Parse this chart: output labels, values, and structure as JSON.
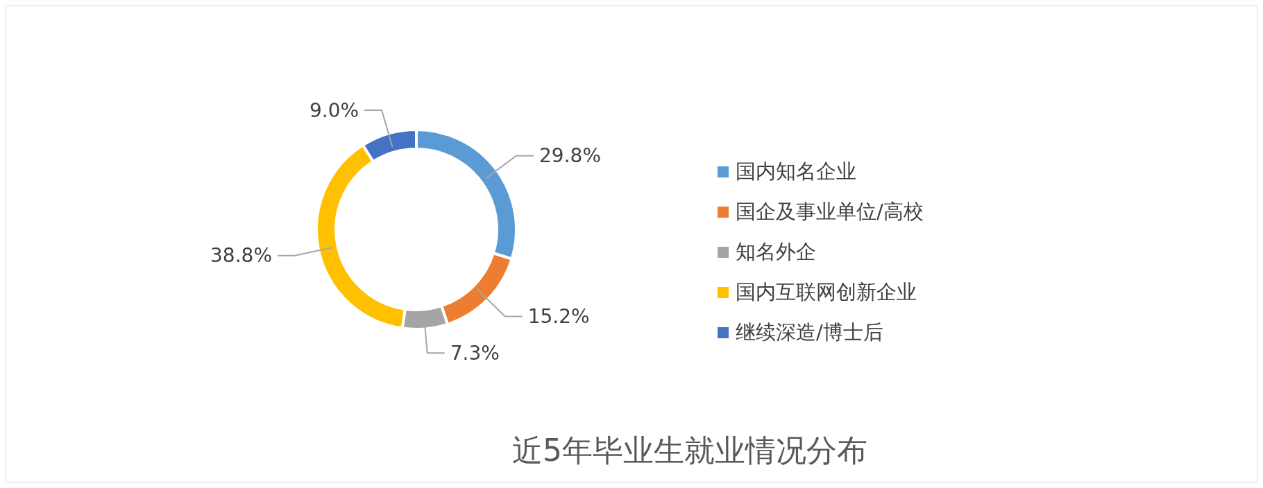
{
  "chart_data": {
    "type": "donut",
    "title": "近5年毕业生就业情况分布",
    "categories": [
      "国内知名企业",
      "国企及事业单位/高校",
      "知名外企",
      "国内互联网创新企业",
      "继续深造/博士后"
    ],
    "values": [
      29.8,
      15.2,
      7.3,
      38.8,
      9.0
    ],
    "colors": [
      "#5b9bd5",
      "#ed7d31",
      "#a5a5a5",
      "#ffc000",
      "#4472c4"
    ],
    "value_labels": [
      "29.8%",
      "15.2%",
      "7.3%",
      "38.8%",
      "9.0%"
    ],
    "legend": "right"
  }
}
